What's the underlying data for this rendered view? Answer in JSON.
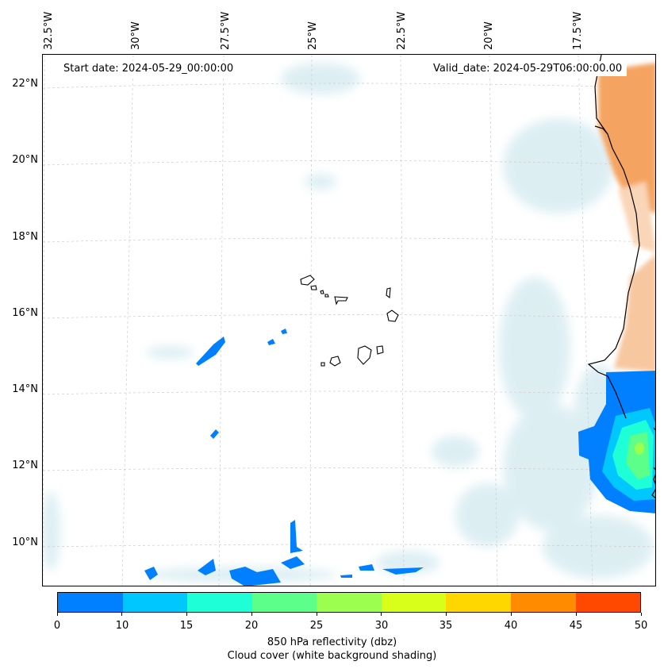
{
  "map": {
    "start_date": "Start date: 2024-05-29_00:00:00",
    "valid_date": "Valid_date: 2024-05-29T06:00:00.00",
    "lon_labels": [
      "32.5°W",
      "30°W",
      "27.5°W",
      "25°W",
      "22.5°W",
      "20°W",
      "17.5°W"
    ],
    "lat_labels": [
      "22°N",
      "20°N",
      "18°N",
      "16°N",
      "14°N",
      "12°N",
      "10°N"
    ],
    "colors": {
      "land_dust": "#f4a460",
      "coastline": "#000000",
      "cloud_shading": "#d8ecf2"
    }
  },
  "colorbar": {
    "tick_labels": [
      "0",
      "10",
      "15",
      "20",
      "25",
      "30",
      "35",
      "40",
      "45",
      "50"
    ],
    "colors": [
      "#0080ff",
      "#00c8ff",
      "#1effd7",
      "#5cff8a",
      "#9cff50",
      "#d7ff1a",
      "#ffd700",
      "#ff8c00",
      "#ff4800"
    ],
    "label": "850 hPa reflectivity (dbz)",
    "sublabel": "Cloud cover (white background shading)"
  }
}
